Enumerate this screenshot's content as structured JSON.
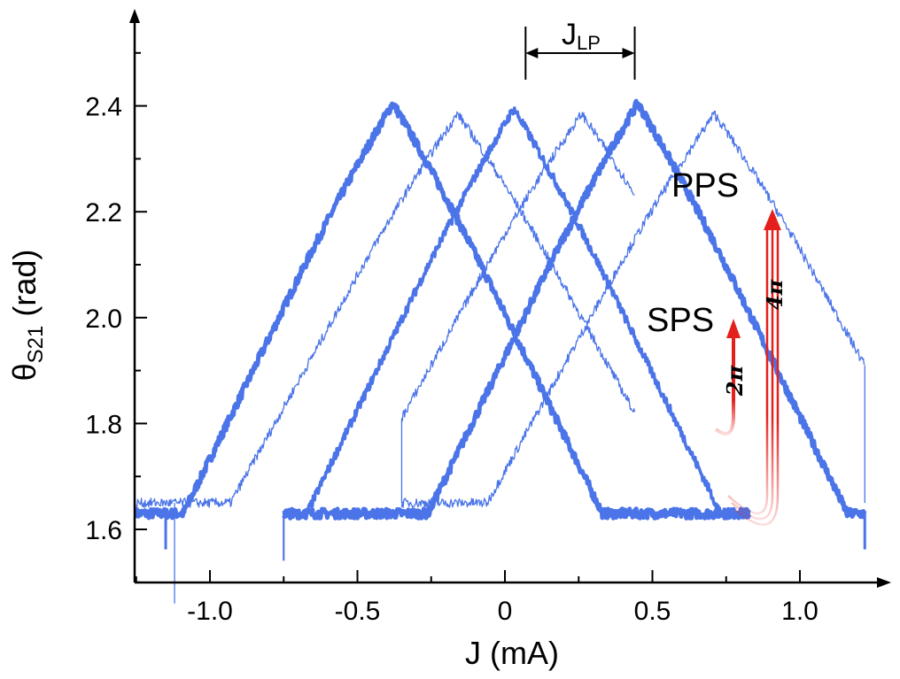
{
  "chart_data": {
    "type": "line",
    "xlabel": "J (mA)",
    "ylabel_main": "θ",
    "ylabel_sub": "S21",
    "ylabel_unit": " (rad)",
    "xlim": [
      -1.25,
      1.25
    ],
    "ylim": [
      1.5,
      2.6
    ],
    "x_ticks": [
      -1.0,
      -0.5,
      0,
      0.5,
      1.0
    ],
    "x_tick_labels": [
      "-1.0",
      "-0.5",
      "0",
      "0.5",
      "1.0"
    ],
    "y_ticks": [
      1.6,
      1.8,
      2.0,
      2.2,
      2.4
    ],
    "y_tick_labels": [
      "1.6",
      "1.8",
      "2.0",
      "2.2",
      "2.4"
    ],
    "grid": false,
    "series": [
      {
        "peak_x": -0.38,
        "peak_y": 2.44,
        "slope": 1.14,
        "ymin": 1.63,
        "xmin": -1.25,
        "xmax": 0.83,
        "jump_x": -1.15,
        "line_width": 5
      },
      {
        "peak_x": 0.45,
        "peak_y": 2.44,
        "slope": 1.14,
        "ymin": 1.63,
        "xmin": -0.75,
        "xmax": 1.22,
        "jump_x": 1.22,
        "line_width": 5
      },
      {
        "peak_x": 0.03,
        "peak_y": 2.43,
        "slope": 1.14,
        "ymin": 1.63,
        "xmin": -0.75,
        "xmax": 0.83,
        "jump_x": -0.75,
        "line_width": 3.5
      },
      {
        "peak_x": -0.16,
        "peak_y": 2.42,
        "slope": 1.0,
        "ymin": 1.65,
        "xmin": -1.25,
        "xmax": 0.44,
        "jump_x": -1.12,
        "line_width": 1.3
      },
      {
        "peak_x": 0.71,
        "peak_y": 2.42,
        "slope": 1.0,
        "ymin": 1.65,
        "xmin": -0.35,
        "xmax": 1.22,
        "jump_x": 1.22,
        "line_width": 1.3
      },
      {
        "peak_x": 0.26,
        "peak_y": 2.42,
        "slope": 1.0,
        "ymin": 1.65,
        "xmin": -0.35,
        "xmax": 0.44,
        "jump_x": -0.35,
        "line_width": 1.3
      }
    ],
    "annotations": {
      "period_label": "J",
      "period_label_sub": "LP",
      "period_span": [
        0.07,
        0.44
      ],
      "pps_label": "PPS",
      "sps_label": "SPS",
      "two_pi_label": "2π",
      "four_pi_label": "4π"
    },
    "colors": {
      "series": "#4a74e8",
      "arrow": "#e3201b",
      "axis": "#000000"
    }
  }
}
